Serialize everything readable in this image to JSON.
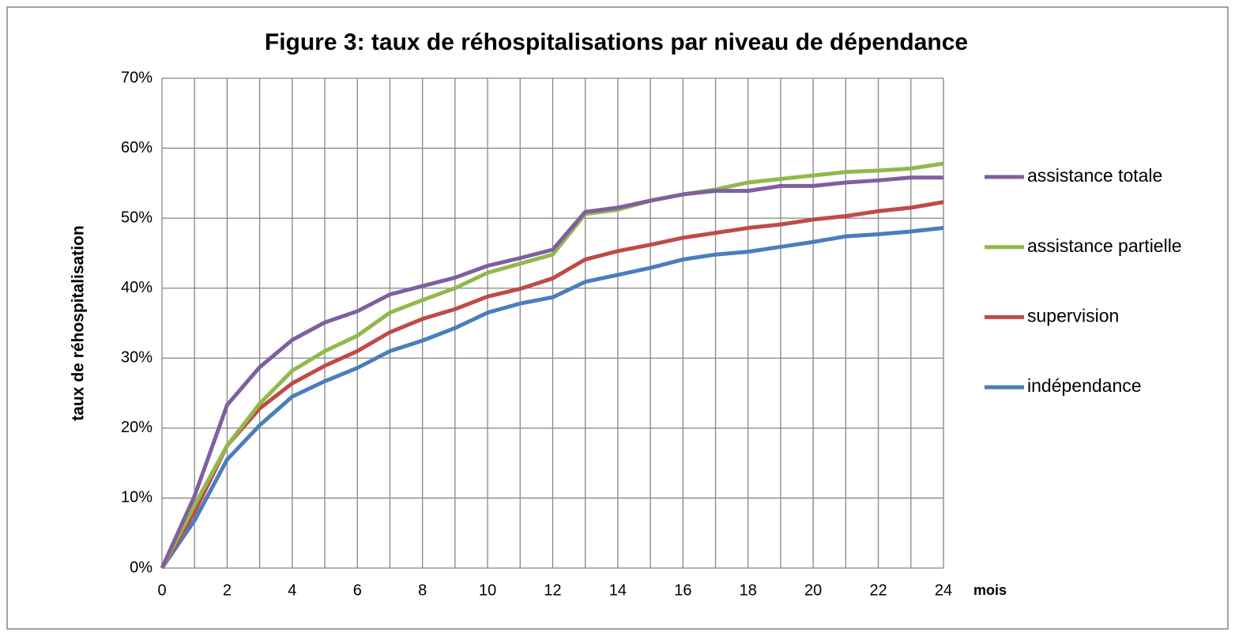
{
  "chart_data": {
    "type": "line",
    "title": "Figure 3: taux de réhospitalisations par niveau de dépendance",
    "y_label": "taux de réhospitalisation",
    "x_label": "mois",
    "categories": [
      0,
      null,
      2,
      null,
      4,
      null,
      6,
      null,
      8,
      null,
      10,
      null,
      12,
      null,
      14,
      null,
      16,
      null,
      18,
      null,
      20,
      null,
      22,
      null,
      24
    ],
    "series": [
      {
        "name": "assistance totale",
        "color": "#7f5fa0",
        "values": [
          0,
          10.3,
          23.3,
          28.7,
          32.6,
          35.1,
          36.7,
          39.1,
          40.3,
          41.5,
          43.2,
          44.3,
          45.5,
          50.9,
          51.5,
          52.5,
          53.4,
          53.9,
          53.9,
          54.6,
          54.6,
          55.1,
          55.4,
          55.8,
          55.8
        ]
      },
      {
        "name": "assistance partielle",
        "color": "#92b84d",
        "values": [
          0,
          9,
          17.5,
          23.5,
          28.2,
          31,
          33.2,
          36.5,
          38.3,
          40,
          42.2,
          43.5,
          44.8,
          50.6,
          51.2,
          52.5,
          53.4,
          54.1,
          55.1,
          55.6,
          56.1,
          56.6,
          56.8,
          57.1,
          57.8
        ]
      },
      {
        "name": "supervision",
        "color": "#be4b48",
        "values": [
          0,
          8,
          17.5,
          22.8,
          26.4,
          28.9,
          31,
          33.7,
          35.6,
          37,
          38.8,
          39.9,
          41.4,
          44.1,
          45.3,
          46.2,
          47.2,
          47.9,
          48.6,
          49.1,
          49.8,
          50.3,
          51,
          51.5,
          52.3
        ]
      },
      {
        "name": "indépendance",
        "color": "#4a7ebb",
        "values": [
          0,
          6.8,
          15.5,
          20.4,
          24.5,
          26.7,
          28.6,
          31,
          32.5,
          34.3,
          36.5,
          37.8,
          38.7,
          40.9,
          41.9,
          42.9,
          44.1,
          44.8,
          45.2,
          45.9,
          46.6,
          47.4,
          47.7,
          48.1,
          48.6
        ]
      }
    ],
    "ylim": [
      0,
      70
    ],
    "yticks": [
      {
        "value": 0,
        "label": "0%"
      },
      {
        "value": 10,
        "label": "10%"
      },
      {
        "value": 20,
        "label": "20%"
      },
      {
        "value": 30,
        "label": "30%"
      },
      {
        "value": 40,
        "label": "40%"
      },
      {
        "value": 50,
        "label": "50%"
      },
      {
        "value": 60,
        "label": "60%"
      },
      {
        "value": 70,
        "label": "70%"
      }
    ],
    "grid": true,
    "legend": "right"
  }
}
